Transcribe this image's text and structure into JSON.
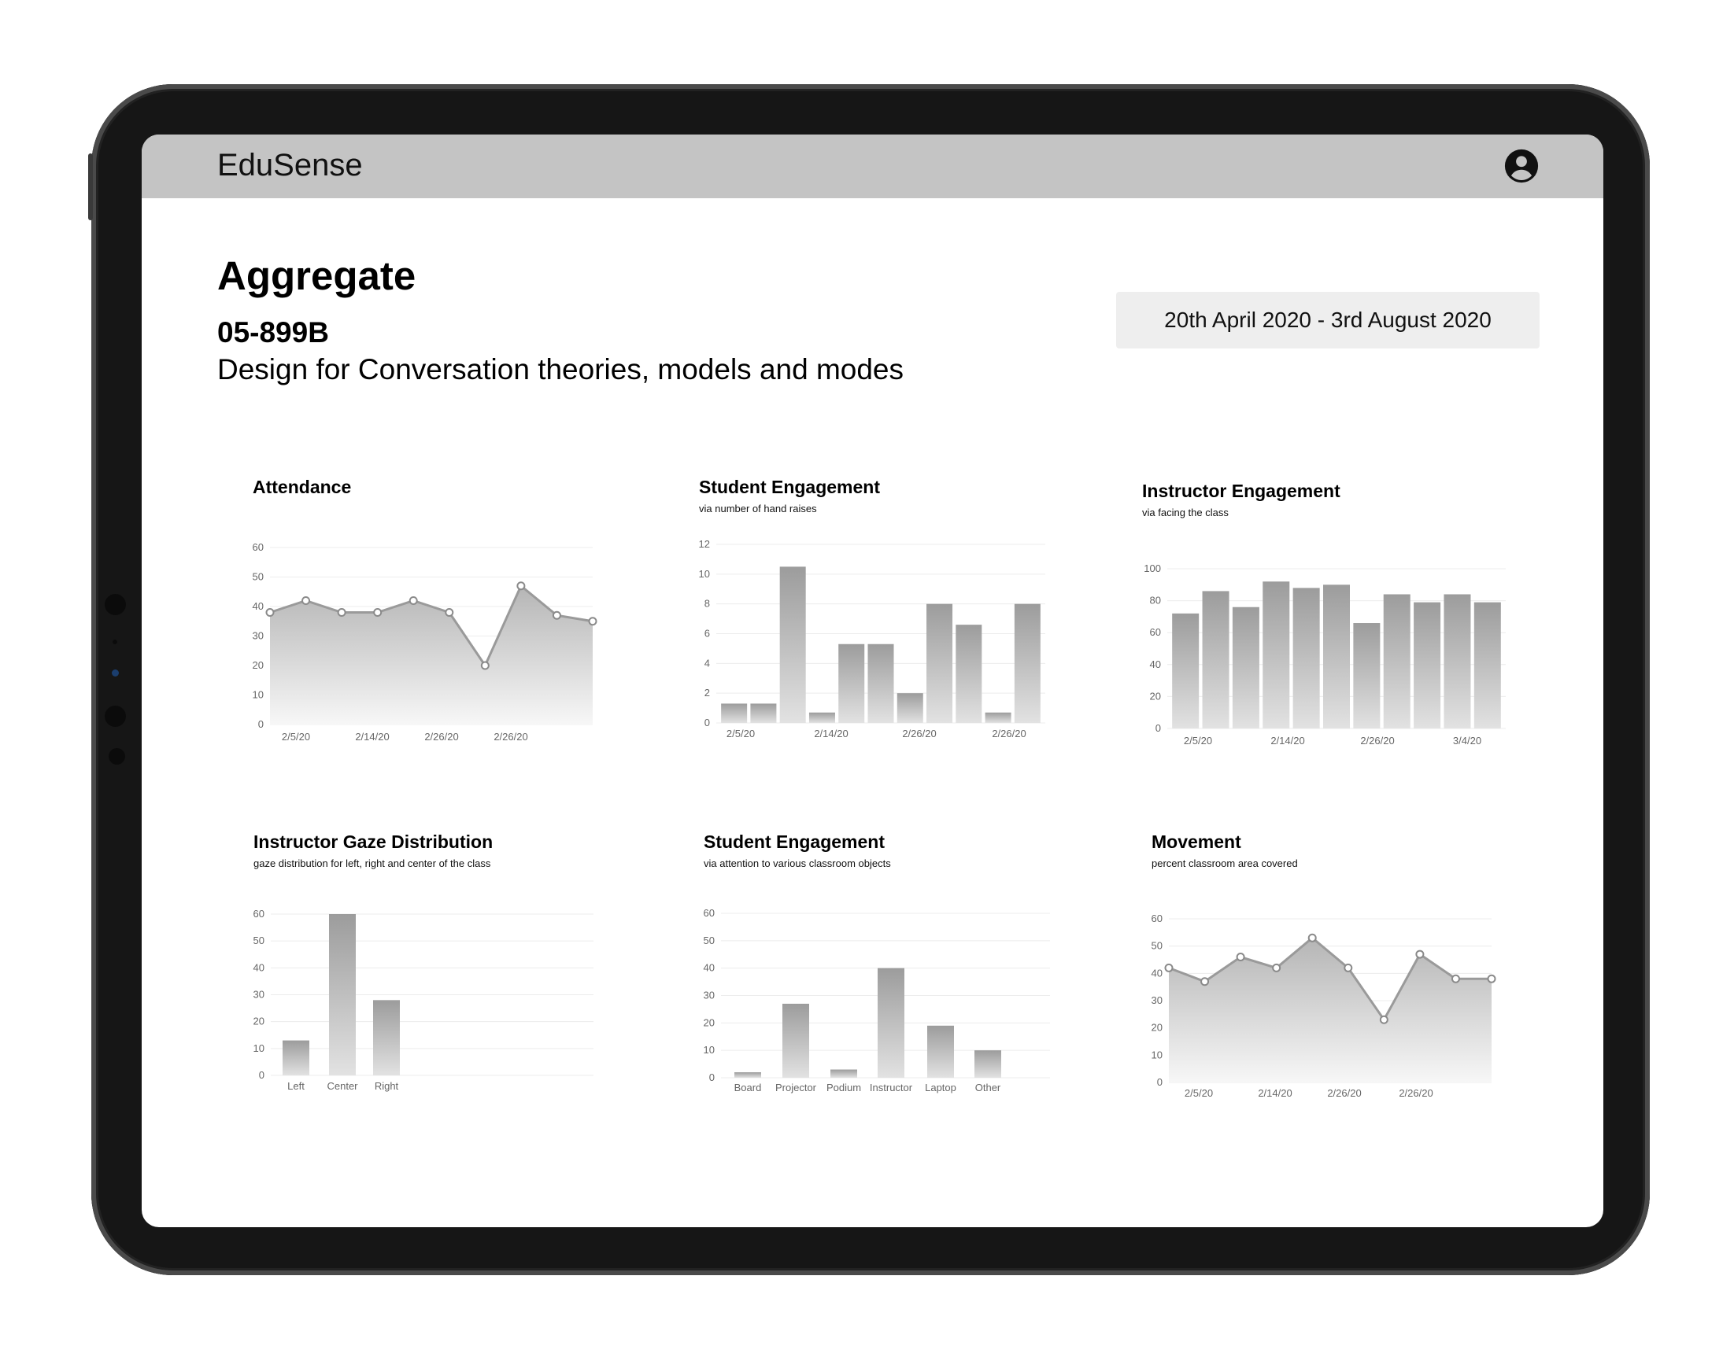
{
  "app": {
    "brand": "EduSense",
    "user_icon": "account-circle-icon"
  },
  "page": {
    "title": "Aggregate",
    "course_code": "05-899B",
    "course_name": "Design for Conversation theories, models and modes",
    "date_range": "20th April 2020 - 3rd August 2020"
  },
  "charts": [
    {
      "title": "Attendance",
      "subtitle": ""
    },
    {
      "title": "Student Engagement",
      "subtitle": "via number of hand raises"
    },
    {
      "title": "Instructor Engagement",
      "subtitle": "via facing the class"
    },
    {
      "title": "Instructor Gaze Distribution",
      "subtitle": "gaze distribution for left, right and center of the class"
    },
    {
      "title": "Student Engagement",
      "subtitle": "via attention to various classroom objects"
    },
    {
      "title": "Movement",
      "subtitle": "percent classroom area covered"
    }
  ],
  "chart_data": [
    {
      "type": "area",
      "title": "Attendance",
      "xlabels": [
        "2/5/20",
        "2/14/20",
        "2/26/20",
        "2/26/20"
      ],
      "values": [
        38,
        42,
        38,
        38,
        42,
        38,
        20,
        47,
        37,
        35
      ],
      "yticks": [
        0,
        10,
        20,
        30,
        40,
        50,
        60
      ],
      "ylim": [
        0,
        60
      ],
      "grid": true
    },
    {
      "type": "bar",
      "title": "Student Engagement",
      "subtitle": "via number of hand raises",
      "xlabels": [
        "2/5/20",
        "2/14/20",
        "2/26/20",
        "2/26/20"
      ],
      "values": [
        1.3,
        1.3,
        10.5,
        0.7,
        5.3,
        5.3,
        2,
        8,
        6.6,
        0.7,
        8
      ],
      "yticks": [
        0,
        2,
        4,
        6,
        8,
        10,
        12
      ],
      "ylim": [
        0,
        12
      ],
      "grid": true
    },
    {
      "type": "bar",
      "title": "Instructor Engagement",
      "subtitle": "via facing the class",
      "xlabels": [
        "2/5/20",
        "2/14/20",
        "2/26/20",
        "3/4/20"
      ],
      "values": [
        72,
        86,
        76,
        92,
        88,
        90,
        66,
        84,
        79,
        84,
        79
      ],
      "yticks": [
        0,
        20,
        40,
        60,
        80,
        100
      ],
      "ylim": [
        0,
        100
      ],
      "grid": true
    },
    {
      "type": "bar",
      "title": "Instructor Gaze Distribution",
      "subtitle": "gaze distribution for left, right and center of the class",
      "categories": [
        "Left",
        "Center",
        "Right"
      ],
      "values": [
        13,
        60,
        28
      ],
      "yticks": [
        0,
        10,
        20,
        30,
        40,
        50,
        60
      ],
      "ylim": [
        0,
        60
      ],
      "grid": true
    },
    {
      "type": "bar",
      "title": "Student Engagement",
      "subtitle": "via attention to various classroom objects",
      "categories": [
        "Board",
        "Projector",
        "Podium",
        "Instructor",
        "Laptop",
        "Other"
      ],
      "values": [
        2,
        27,
        3,
        40,
        19,
        10
      ],
      "yticks": [
        0,
        10,
        20,
        30,
        40,
        50,
        60
      ],
      "ylim": [
        0,
        60
      ],
      "grid": true
    },
    {
      "type": "area",
      "title": "Movement",
      "subtitle": "percent classroom area covered",
      "xlabels": [
        "2/5/20",
        "2/14/20",
        "2/26/20",
        "2/26/20"
      ],
      "values": [
        42,
        37,
        46,
        42,
        53,
        42,
        23,
        47,
        38,
        38
      ],
      "yticks": [
        0,
        10,
        20,
        30,
        40,
        50,
        60
      ],
      "ylim": [
        0,
        60
      ],
      "grid": true
    }
  ]
}
